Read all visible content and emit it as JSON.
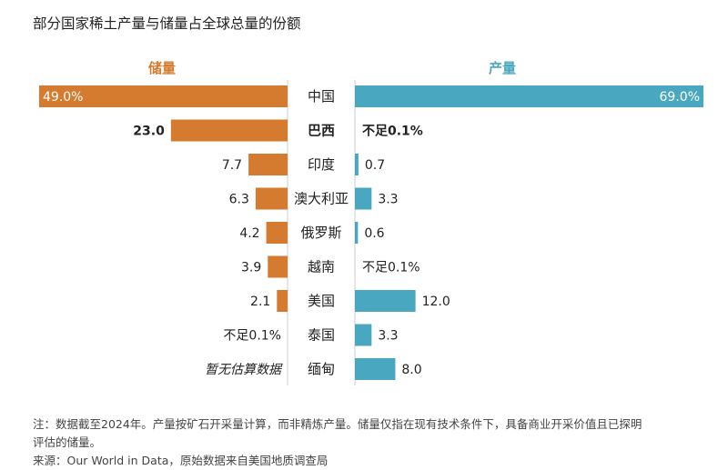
{
  "title": "部分国家稀土产量与储量占全球总量的份额",
  "colors": {
    "reserves": "#D57B2F",
    "production": "#4AA7C0",
    "text": "#222222",
    "divider": "#CCCCCC"
  },
  "chart_data": {
    "type": "bar",
    "subtype": "diverging-horizontal",
    "unit": "%",
    "left_series_name": "储量",
    "right_series_name": "产量",
    "categories": [
      "中国",
      "巴西",
      "印度",
      "澳大利亚",
      "俄罗斯",
      "越南",
      "美国",
      "泰国",
      "缅甸"
    ],
    "highlight": "巴西",
    "series": [
      {
        "name": "储量",
        "side": "left",
        "values": [
          49.0,
          23.0,
          7.7,
          6.3,
          4.2,
          3.9,
          2.1,
          null,
          null
        ],
        "labels": [
          "49.0%",
          "23.0",
          "7.7",
          "6.3",
          "4.2",
          "3.9",
          "2.1",
          "不足0.1%",
          "暂无估算数据"
        ]
      },
      {
        "name": "产量",
        "side": "right",
        "values": [
          69.0,
          null,
          0.7,
          3.3,
          0.6,
          null,
          12.0,
          3.3,
          8.0
        ],
        "labels": [
          "69.0%",
          "不足0.1%",
          "0.7",
          "3.3",
          "0.6",
          "不足0.1%",
          "12.0",
          "3.3",
          "8.0"
        ]
      }
    ]
  },
  "notes": {
    "line1": "注：数据截至2024年。产量按矿石开采量计算，而非精炼产量。储量仅指在现有技术条件下，具备商业开采价值且已探明",
    "line2": "评估的储量。",
    "source": "来源：Our World in Data，原始数据来自美国地质调查局"
  }
}
